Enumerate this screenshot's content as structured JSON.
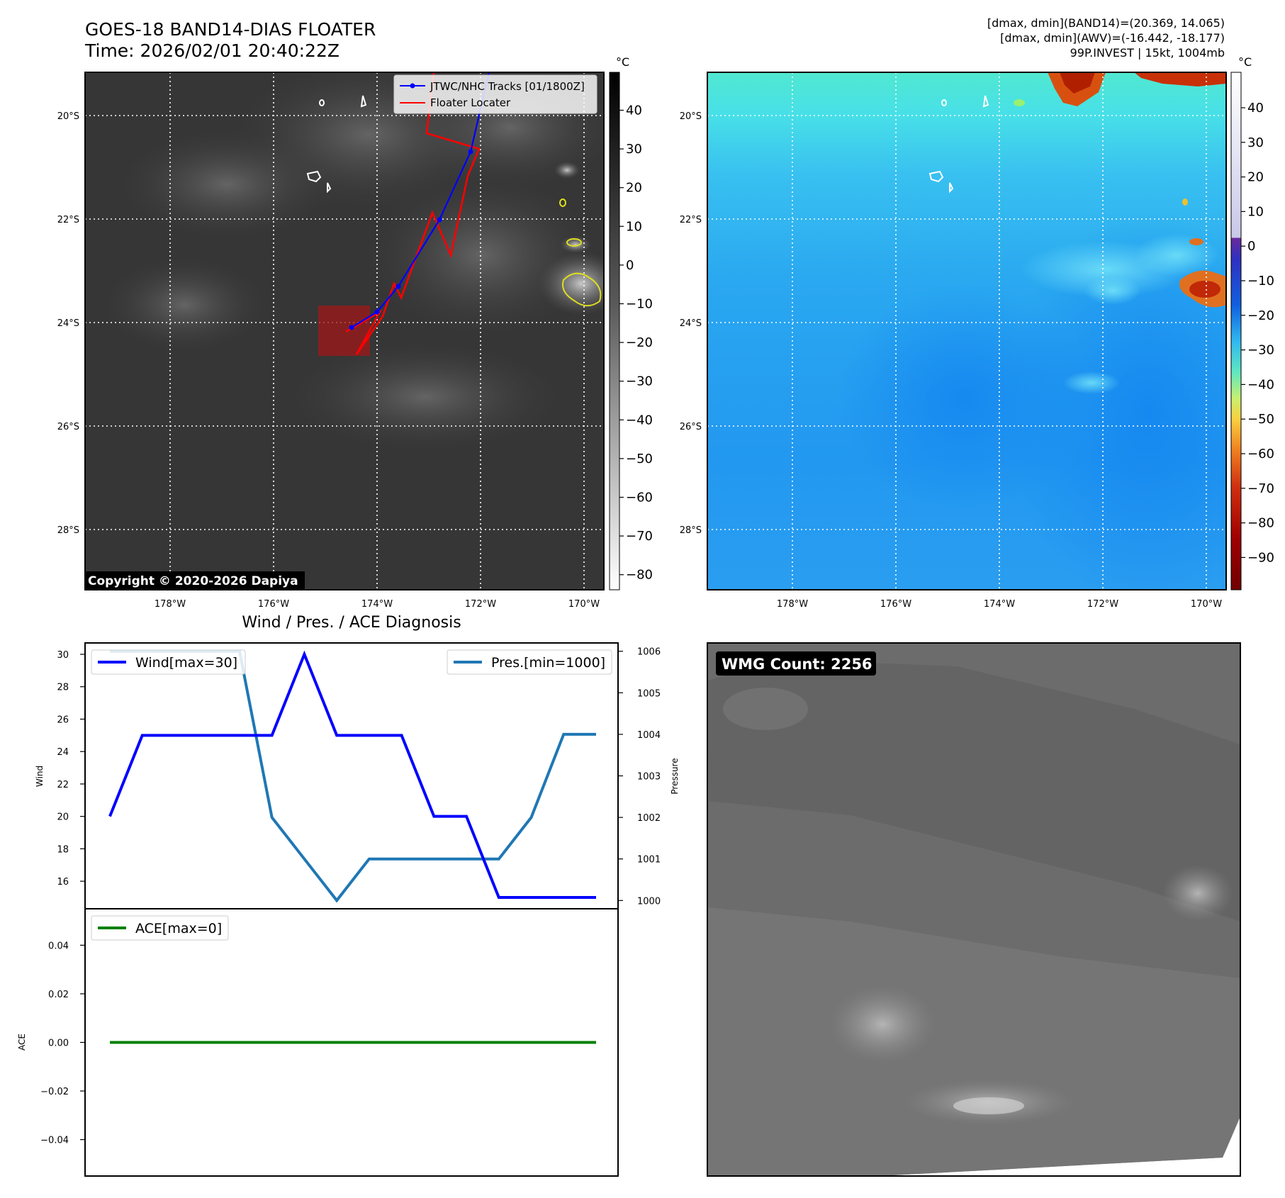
{
  "header": {
    "title": "GOES-18 BAND14-DIAS FLOATER",
    "time": "Time: 2026/02/01 20:40:22Z",
    "stats_line1": "[dmax, dmin](BAND14)=(20.369, 14.065)",
    "stats_line2": "[dmax, dmin](AWV)=(-16.442, -18.177)",
    "stats_line3": "99P.INVEST | 15kt, 1004mb"
  },
  "maps": {
    "lat_labels": [
      "20°S",
      "22°S",
      "24°S",
      "26°S",
      "28°S"
    ],
    "lon_labels": [
      "178°W",
      "176°W",
      "174°W",
      "172°W",
      "170°W"
    ],
    "copyright": "Copyright © 2020-2026 Dapiya",
    "legend": {
      "tracks": "JTWC/NHC Tracks [01/1800Z]",
      "locater": "Floater Locater"
    },
    "track_color": "#0000ff",
    "locater_color": "#ff0000",
    "ir_colorbar": {
      "unit": "°C",
      "ticks": [
        "40",
        "30",
        "20",
        "10",
        "0",
        "−10",
        "−20",
        "−30",
        "−40",
        "−50",
        "−60",
        "−70",
        "−80"
      ]
    },
    "awv_colorbar": {
      "unit": "°C",
      "ticks": [
        "40",
        "30",
        "20",
        "10",
        "0",
        "−10",
        "−20",
        "−30",
        "−40",
        "−50",
        "−60",
        "−70",
        "−80",
        "−90"
      ]
    }
  },
  "diag": {
    "title": "Wind / Pres. / ACE Diagnosis",
    "wind_label": "Wind",
    "pres_label": "Pressure",
    "ace_label": "ACE",
    "wind_legend": "Wind[max=30]",
    "pres_legend": "Pres.[min=1000]",
    "ace_legend": "ACE[max=0]",
    "wind_ticks": [
      "30",
      "28",
      "26",
      "24",
      "22",
      "20",
      "18",
      "16"
    ],
    "pres_ticks": [
      "1006",
      "1005",
      "1004",
      "1003",
      "1002",
      "1001",
      "1000"
    ],
    "ace_ticks": [
      "0.04",
      "0.02",
      "0.00",
      "−0.02",
      "−0.04"
    ]
  },
  "wmg": {
    "label": "WMG Count: 2256"
  },
  "chart_data": [
    {
      "type": "line",
      "title": "Wind / Pres. / ACE Diagnosis",
      "ylabel": "Wind",
      "y2label": "Pressure",
      "x": [
        0,
        1,
        2,
        3,
        4,
        5,
        6,
        7,
        8,
        9,
        10,
        11,
        12,
        13,
        14,
        15
      ],
      "series": [
        {
          "name": "Wind[max=30]",
          "axis": "left",
          "color": "#0000ff",
          "values": [
            20,
            25,
            25,
            25,
            25,
            25,
            30,
            25,
            25,
            25,
            20,
            20,
            15,
            15,
            15,
            15
          ]
        },
        {
          "name": "Pres.[min=1000]",
          "axis": "right",
          "color": "#1f77b4",
          "values": [
            1006,
            1006,
            1006,
            1006,
            1006,
            1002,
            1001,
            1000,
            1001,
            1001,
            1001,
            1001,
            1001,
            1002,
            1004,
            1004
          ]
        }
      ],
      "ylim": [
        14.3,
        30.7
      ],
      "y2lim": [
        999.8,
        1006.2
      ]
    },
    {
      "type": "line",
      "ylabel": "ACE",
      "x": [
        0,
        1,
        2,
        3,
        4,
        5,
        6,
        7,
        8,
        9,
        10,
        11,
        12,
        13,
        14,
        15
      ],
      "series": [
        {
          "name": "ACE[max=0]",
          "color": "#008000",
          "values": [
            0,
            0,
            0,
            0,
            0,
            0,
            0,
            0,
            0,
            0,
            0,
            0,
            0,
            0,
            0,
            0
          ]
        }
      ],
      "ylim": [
        -0.055,
        0.055
      ]
    }
  ]
}
